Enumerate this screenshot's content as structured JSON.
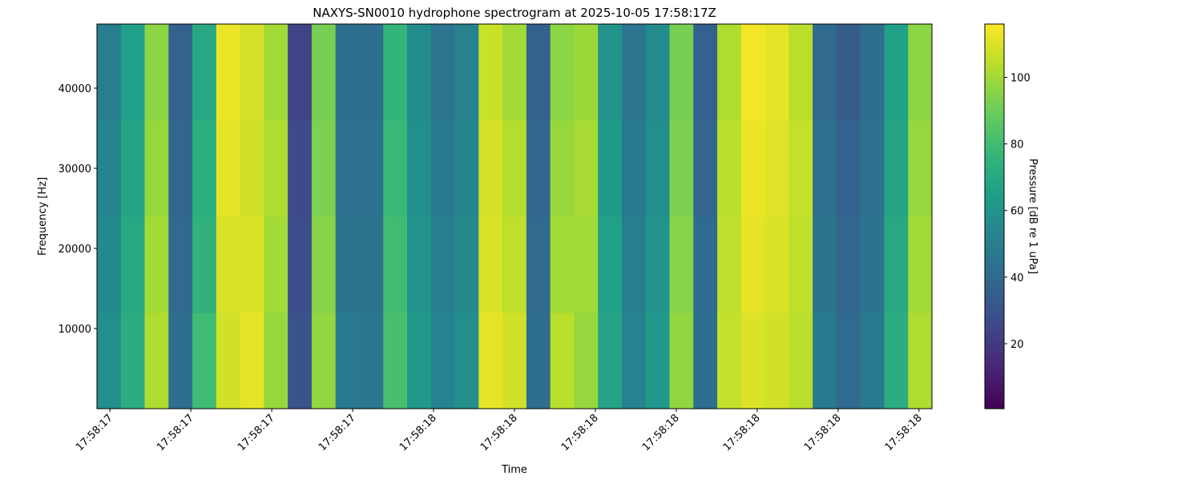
{
  "chart_data": {
    "type": "heatmap",
    "title": "NAXYS-SN0010 hydrophone spectrogram at 2025-10-05 17:58:17Z",
    "x_label": "Time",
    "y_label": "Frequency [Hz]",
    "colorbar_label": "Pressure [dB re 1 uPa]",
    "colormap": "viridis",
    "xlim": [
      17.584,
      18.616
    ],
    "xticks": [
      {
        "value": 17.6,
        "label": "17:58:17"
      },
      {
        "value": 17.7,
        "label": "17:58:17"
      },
      {
        "value": 17.8,
        "label": "17:58:17"
      },
      {
        "value": 17.9,
        "label": "17:58:17"
      },
      {
        "value": 18.0,
        "label": "17:58:18"
      },
      {
        "value": 18.1,
        "label": "17:58:18"
      },
      {
        "value": 18.2,
        "label": "17:58:18"
      },
      {
        "value": 18.3,
        "label": "17:58:18"
      },
      {
        "value": 18.4,
        "label": "17:58:18"
      },
      {
        "value": 18.5,
        "label": "17:58:18"
      },
      {
        "value": 18.6,
        "label": "17:58:18"
      }
    ],
    "ylim": [
      0,
      48000
    ],
    "yticks": [
      10000,
      20000,
      30000,
      40000
    ],
    "clim": [
      0.5,
      116
    ],
    "cticks": [
      20,
      40,
      60,
      80,
      100
    ],
    "z": [
      [
        58,
        72,
        102,
        42,
        80,
        108,
        112,
        98,
        30,
        97,
        48,
        47,
        82,
        62,
        52,
        58,
        112,
        108,
        42,
        104,
        98,
        68,
        52,
        62,
        97,
        42,
        106,
        110,
        108,
        104,
        48,
        40,
        48,
        72,
        102
      ],
      [
        55,
        70,
        100,
        40,
        75,
        110,
        110,
        100,
        28,
        95,
        45,
        45,
        80,
        60,
        50,
        55,
        110,
        105,
        40,
        100,
        100,
        65,
        50,
        60,
        95,
        40,
        105,
        112,
        110,
        105,
        45,
        38,
        45,
        70,
        100
      ],
      [
        53,
        68,
        98,
        38,
        73,
        112,
        108,
        102,
        26,
        93,
        44,
        44,
        78,
        58,
        48,
        53,
        109,
        103,
        38,
        98,
        101,
        63,
        48,
        58,
        93,
        38,
        104,
        113,
        111,
        106,
        43,
        36,
        44,
        68,
        98
      ],
      [
        50,
        65,
        96,
        36,
        70,
        113,
        109,
        100,
        24,
        92,
        42,
        42,
        76,
        56,
        46,
        52,
        107,
        100,
        36,
        96,
        99,
        60,
        46,
        56,
        92,
        36,
        102,
        114,
        112,
        104,
        40,
        34,
        42,
        66,
        96
      ]
    ]
  }
}
